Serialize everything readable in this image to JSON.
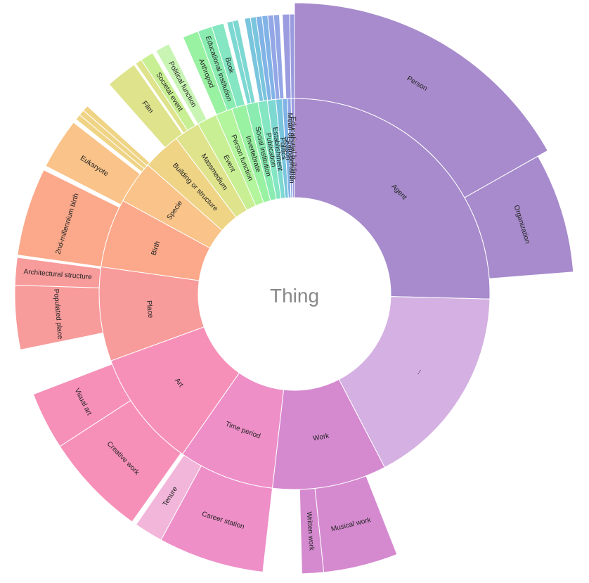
{
  "chart_data": {
    "type": "sunburst",
    "root": {
      "label": "Thing"
    },
    "rings": [
      [
        {
          "label": "Agent",
          "start": 0,
          "end": 91.5,
          "color": "#a78bcc"
        },
        {
          "label": "...",
          "start": 91.5,
          "end": 152.5,
          "color": "#d4b1e2"
        },
        {
          "label": "Work",
          "start": 152.5,
          "end": 186.5,
          "color": "#d58ad0"
        },
        {
          "label": "Time period",
          "start": 186.5,
          "end": 215,
          "color": "#ee8fc8"
        },
        {
          "label": "Art",
          "start": 215,
          "end": 250,
          "color": "#f690b8"
        },
        {
          "label": "Place",
          "start": 250,
          "end": 278,
          "color": "#f89b9b"
        },
        {
          "label": "Birth",
          "start": 278,
          "end": 298.5,
          "color": "#fba98a"
        },
        {
          "label": "Specie",
          "start": 298.5,
          "end": 311.3,
          "color": "#f9c389"
        },
        {
          "label": "Building or structure",
          "start": 311.3,
          "end": 322.7,
          "color": "#efd486"
        },
        {
          "label": "Massmedium",
          "start": 322.7,
          "end": 330.4,
          "color": "#dee38c"
        },
        {
          "label": "Event",
          "start": 330.4,
          "end": 336.3,
          "color": "#c9ef94"
        },
        {
          "label": "Person function",
          "start": 336.3,
          "end": 341.3,
          "color": "#b2f59c"
        },
        {
          "label": "Invertebrate",
          "start": 341.3,
          "end": 345.6,
          "color": "#99f1a2"
        },
        {
          "label": "Social institution",
          "start": 345.6,
          "end": 349.2,
          "color": "#8aecb1"
        },
        {
          "label": "Publication",
          "start": 349.2,
          "end": 352,
          "color": "#84e6c2"
        },
        {
          "label": "Establishment",
          "start": 352,
          "end": 354.5,
          "color": "#7ed8d2"
        },
        {
          "label": "Politics",
          "start": 354.5,
          "end": 356.4,
          "color": "#7ac5de"
        },
        {
          "label": "Season",
          "start": 356.4,
          "end": 357.9,
          "color": "#81b3e6"
        },
        {
          "label": "Mean of transportation",
          "start": 357.9,
          "end": 359,
          "color": "#93a7e6"
        },
        {
          "label": "Educational building",
          "start": 359,
          "end": 360,
          "color": "#9b9cdf"
        }
      ],
      [
        {
          "label": "Person",
          "start": 0,
          "end": 60.5,
          "color": "#a78bcc"
        },
        {
          "label": "Organization",
          "start": 60.5,
          "end": 85.5,
          "color": "#a78bcc"
        },
        {
          "label": "Musical work",
          "start": 158.5,
          "end": 174,
          "color": "#d58ad0"
        },
        {
          "label": "Written work",
          "start": 174,
          "end": 178.5,
          "color": "#d58ad0"
        },
        {
          "label": "Career station",
          "start": 186.5,
          "end": 208.5,
          "color": "#ee8fc8"
        },
        {
          "label": "Tenure",
          "start": 208.5,
          "end": 214.5,
          "color": "#f2b6da"
        },
        {
          "label": "Creative work",
          "start": 215.5,
          "end": 237,
          "color": "#f690b8"
        },
        {
          "label": "Visual art",
          "start": 237,
          "end": 249,
          "color": "#f690b8"
        },
        {
          "label": "Populated place",
          "start": 258.5,
          "end": 271.8,
          "color": "#f89b9b"
        },
        {
          "label": "Architectural structure",
          "start": 271.8,
          "end": 277.5,
          "color": "#f89b9b"
        },
        {
          "label": "2nd-millennium birth",
          "start": 278,
          "end": 296.3,
          "color": "#fba98a"
        },
        {
          "label": "Eukaryote",
          "start": 297.2,
          "end": 307.8,
          "color": "#f9c389"
        },
        {
          "label": "",
          "start": 308.6,
          "end": 309.8,
          "color": "#efd486"
        },
        {
          "label": "",
          "start": 309.8,
          "end": 311.0,
          "color": "#efd486"
        },
        {
          "label": "",
          "start": 311.0,
          "end": 312.2,
          "color": "#efd486"
        },
        {
          "label": "Film",
          "start": 318.5,
          "end": 325,
          "color": "#dee38c"
        },
        {
          "label": "",
          "start": 325.4,
          "end": 326.8,
          "color": "#dee38c"
        },
        {
          "label": "Societal event",
          "start": 326.8,
          "end": 329.5,
          "color": "#c9ef94"
        },
        {
          "label": "Political function",
          "start": 330.3,
          "end": 333.3,
          "color": "#c9f5b4"
        },
        {
          "label": "Arthropod",
          "start": 336.5,
          "end": 339.8,
          "color": "#99f1a2"
        },
        {
          "label": "Educational institution",
          "start": 339.8,
          "end": 342.8,
          "color": "#8aecb1"
        },
        {
          "label": "Book",
          "start": 342.8,
          "end": 345.3,
          "color": "#84e6c2"
        },
        {
          "label": "",
          "start": 346.0,
          "end": 347.2,
          "color": "#7ed8d2"
        },
        {
          "label": "",
          "start": 347.2,
          "end": 348.4,
          "color": "#7ed8d2"
        },
        {
          "label": "",
          "start": 349.7,
          "end": 350.9,
          "color": "#7ac5de"
        },
        {
          "label": "",
          "start": 350.9,
          "end": 352.1,
          "color": "#7ac5de"
        },
        {
          "label": "",
          "start": 352.1,
          "end": 353.3,
          "color": "#81b3e6"
        },
        {
          "label": "",
          "start": 353.3,
          "end": 354.5,
          "color": "#81b3e6"
        },
        {
          "label": "",
          "start": 354.5,
          "end": 355.7,
          "color": "#93a7e6"
        },
        {
          "label": "",
          "start": 355.7,
          "end": 356.9,
          "color": "#93a7e6"
        },
        {
          "label": "",
          "start": 357.5,
          "end": 359.0,
          "color": "#9b9cdf"
        },
        {
          "label": "",
          "start": 359.0,
          "end": 360.0,
          "color": "#9b9cdf"
        }
      ]
    ]
  }
}
